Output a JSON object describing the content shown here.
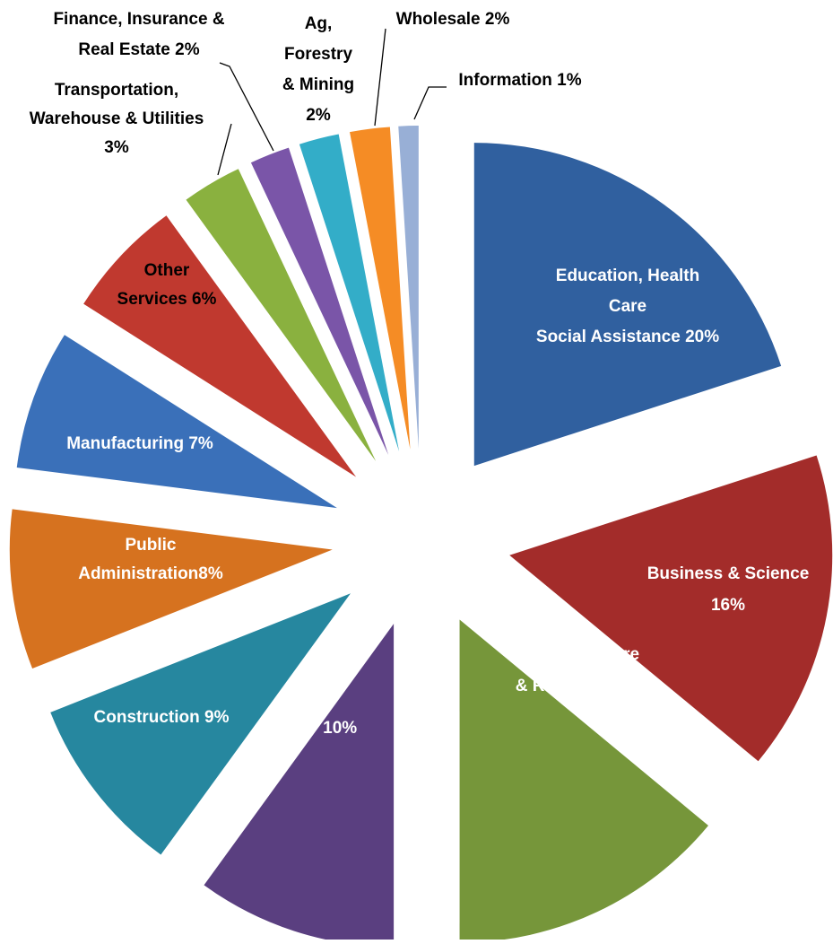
{
  "chart_data": {
    "type": "pie",
    "labels": [
      "Education, Health\nCare\nSocial Assistance 20%",
      "Business & Science\n16%",
      "Arts, Leisure\n& Recreation 14%",
      "Retail  10%",
      "Construction 9%",
      "Public\nAdministration8%",
      "Manufacturing 7%",
      "Other\nServices 6%",
      "Transportation,\nWarehouse & Utilities\n3%",
      "Finance, Insurance &\nReal Estate 2%",
      "Ag,\nForestry\n& Mining\n2%",
      "Wholesale 2%",
      "Information 1%"
    ],
    "values": [
      20,
      16,
      14,
      10,
      9,
      8,
      7,
      6,
      3,
      2,
      2,
      2,
      1
    ],
    "colors": [
      "#30609f",
      "#a32c2a",
      "#76963a",
      "#5a3f80",
      "#26879f",
      "#d6721f",
      "#3a70b9",
      "#c0392f",
      "#8ab13f",
      "#7a55a8",
      "#33adc8",
      "#f58c25",
      "#98afd6"
    ]
  }
}
